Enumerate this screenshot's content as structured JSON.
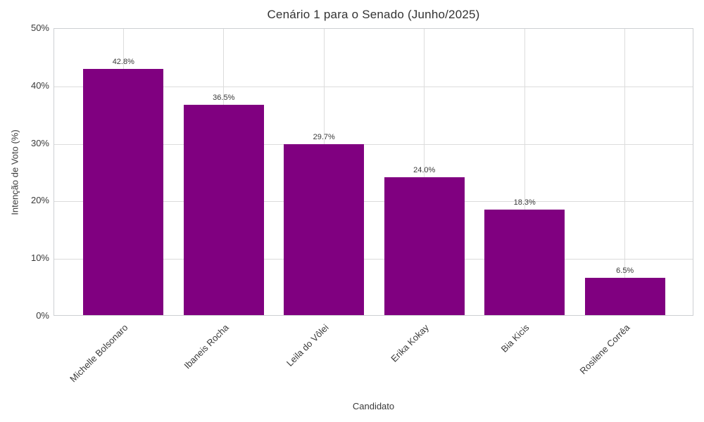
{
  "chart_data": {
    "type": "bar",
    "title": "Cenário 1 para o Senado (Junho/2025)",
    "xlabel": "Candidato",
    "ylabel": "Intenção de Voto (%)",
    "categories": [
      "Michelle Bolsonaro",
      "Ibaneis Rocha",
      "Leila do Vôlei",
      "Erika Kokay",
      "Bia Kicis",
      "Rosilene Corrêa"
    ],
    "values": [
      42.8,
      36.5,
      29.7,
      24.0,
      18.3,
      6.5
    ],
    "value_labels": [
      "42.8%",
      "36.5%",
      "29.7%",
      "24.0%",
      "18.3%",
      "6.5%"
    ],
    "ylim": [
      0,
      50
    ],
    "yticks": [
      0,
      10,
      20,
      30,
      40,
      50
    ],
    "ytick_labels": [
      "0%",
      "10%",
      "20%",
      "30%",
      "40%",
      "50%"
    ],
    "bar_color": "#800080",
    "grid": true,
    "legend_position": "none"
  }
}
